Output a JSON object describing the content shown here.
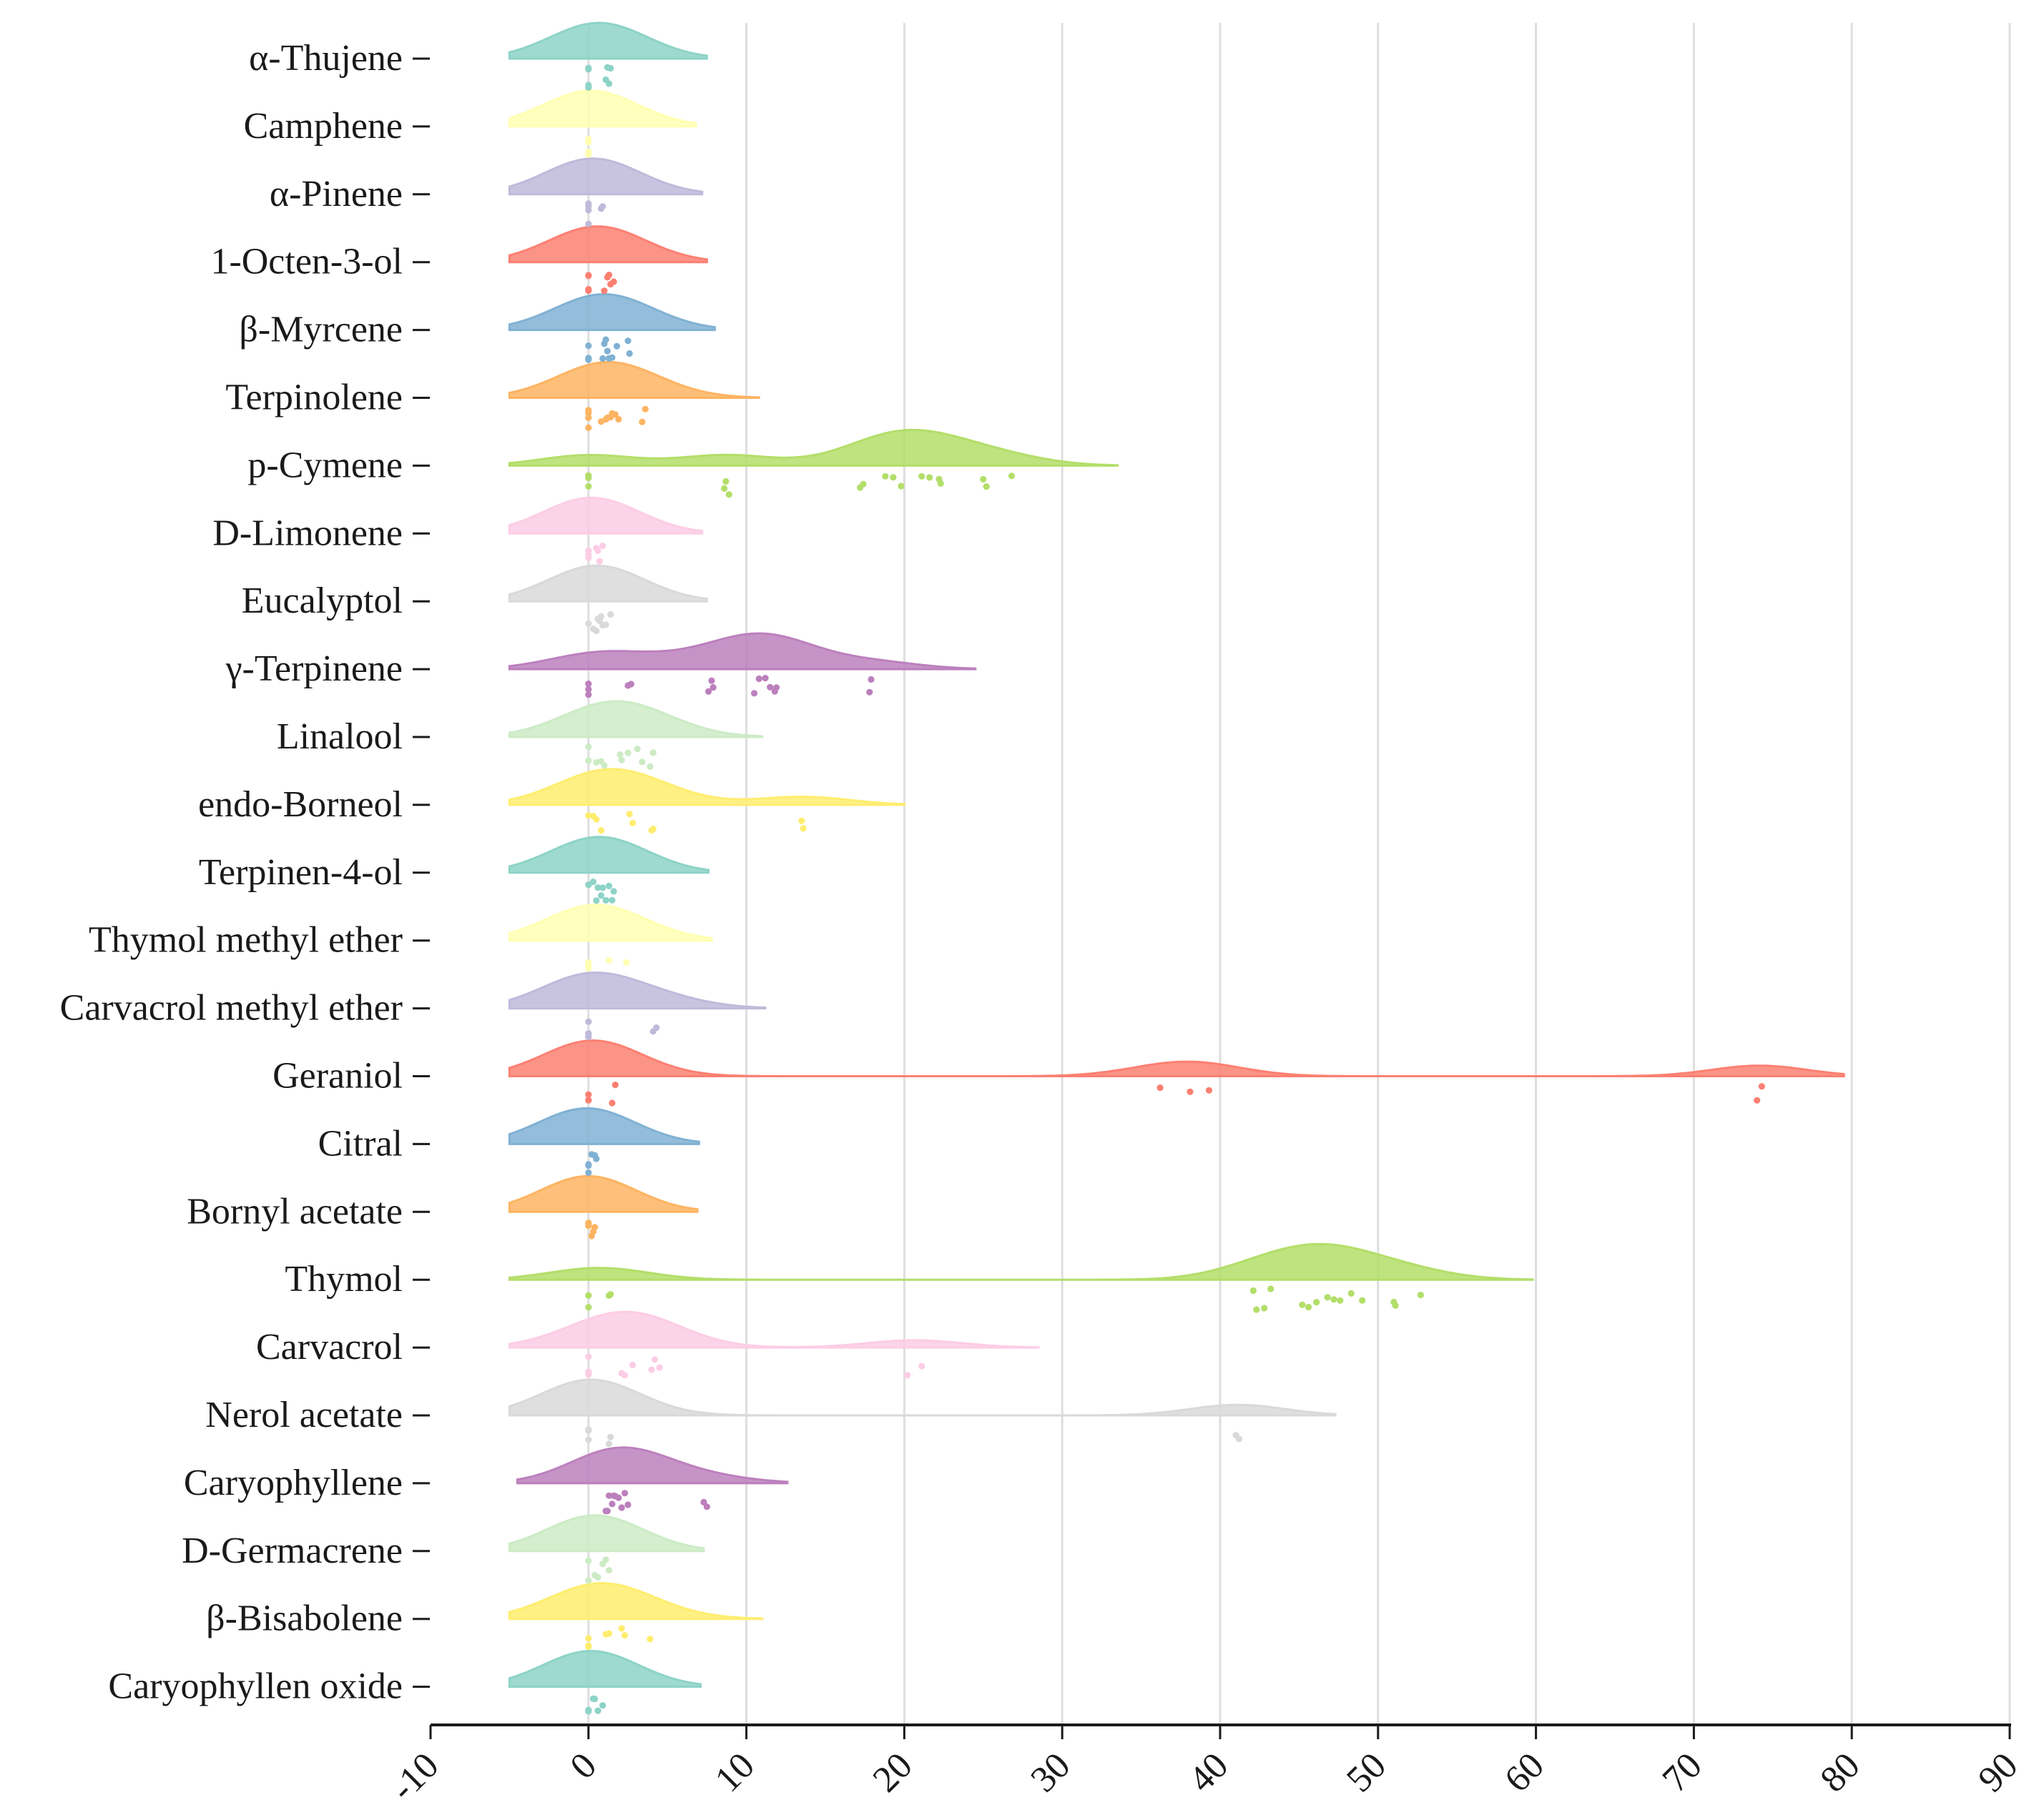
{
  "chart_data": {
    "type": "raincloud",
    "title": "",
    "xlabel": "",
    "ylabel": "",
    "xlim": [
      -10,
      90
    ],
    "xticks": [
      "-10",
      "0",
      "10",
      "20",
      "30",
      "40",
      "50",
      "60",
      "70",
      "80",
      "90"
    ],
    "grid": "vertical",
    "legend": "none",
    "categories": [
      {
        "name": "α-Thujene",
        "color": "#8dd3c7",
        "kde_min": -5,
        "kde_max": 7.5,
        "kde_peak": 0.8,
        "points": [
          0,
          0,
          0,
          0,
          1.2,
          1.4,
          1.3,
          1.1
        ]
      },
      {
        "name": "Camphene",
        "color": "#ffffb3",
        "kde_min": -5,
        "kde_max": 6.8,
        "kde_peak": 0.6,
        "points": [
          0,
          0,
          0,
          0,
          0,
          0
        ]
      },
      {
        "name": "α-Pinene",
        "color": "#bebada",
        "kde_min": -5,
        "kde_max": 7.2,
        "kde_peak": 0.3,
        "points": [
          0,
          0,
          0,
          0,
          0.8,
          0.9
        ]
      },
      {
        "name": "1-Octen-3-ol",
        "color": "#fb8072",
        "kde_min": -5,
        "kde_max": 7.5,
        "kde_peak": 0.2,
        "points": [
          0,
          0,
          0,
          0,
          0,
          1,
          1.2,
          1.4,
          1.6,
          1.3
        ]
      },
      {
        "name": "β-Myrcene",
        "color": "#80b1d3",
        "kde_min": -5,
        "kde_max": 8,
        "kde_peak": 0.5,
        "points": [
          0,
          0,
          0,
          0,
          0.9,
          1.1,
          1.3,
          1.5,
          1.8,
          2.5,
          2.6,
          1.2,
          1.0
        ]
      },
      {
        "name": "Terpinolene",
        "color": "#fdb462",
        "kde_min": -5,
        "kde_max": 10.8,
        "kde_peak": 1.5,
        "points": [
          0,
          0,
          0,
          0,
          0.8,
          1.1,
          1.4,
          1.7,
          1.9,
          1.5,
          3.4,
          3.6,
          1.2
        ]
      },
      {
        "name": "p-Cymene",
        "color": "#b3de69",
        "kde_min": -5,
        "kde_max": 33.5,
        "kde_peak": 20,
        "points": [
          0,
          0,
          0,
          8.6,
          8.9,
          8.7,
          17.2,
          17.4,
          18.8,
          19.3,
          19.8,
          21.1,
          21.6,
          22.3,
          22.2,
          25.0,
          25.2,
          26.8
        ]
      },
      {
        "name": "D-Limonene",
        "color": "#fccde5",
        "kde_min": -5,
        "kde_max": 7.2,
        "kde_peak": -0.5,
        "points": [
          0,
          0,
          0,
          0.5,
          0.7,
          0.9,
          0.6
        ]
      },
      {
        "name": "Eucalyptol",
        "color": "#d9d9d9",
        "kde_min": -5,
        "kde_max": 7.5,
        "kde_peak": -0.3,
        "points": [
          0,
          0.3,
          0.5,
          0.7,
          0.9,
          1.1,
          1.4,
          0.8,
          0.6
        ]
      },
      {
        "name": "γ-Terpinene",
        "color": "#bc80bd",
        "kde_min": -5,
        "kde_max": 24.5,
        "kde_peak": 12,
        "points": [
          0,
          0,
          0,
          2.5,
          2.7,
          7.6,
          7.8,
          7.9,
          10.5,
          10.8,
          11.2,
          11.5,
          11.8,
          11.9,
          17.8,
          17.9
        ]
      },
      {
        "name": "Linalool",
        "color": "#ccebc5",
        "kde_min": -5,
        "kde_max": 11,
        "kde_peak": 1,
        "points": [
          0,
          0,
          0.5,
          0.8,
          1.0,
          2.1,
          2.5,
          3.1,
          3.4,
          3.9,
          4.1,
          2.0
        ]
      },
      {
        "name": "endo-Borneol",
        "color": "#ffed6f",
        "kde_min": -5,
        "kde_max": 20,
        "kde_peak": 0.5,
        "points": [
          0,
          0.3,
          0.5,
          0.8,
          2.6,
          2.8,
          4.0,
          4.1,
          13.5,
          13.6
        ]
      },
      {
        "name": "Terpinen-4-ol",
        "color": "#8dd3c7",
        "kde_min": -5,
        "kde_max": 7.6,
        "kde_peak": -0.2,
        "points": [
          0,
          0.3,
          0.5,
          0.8,
          1.1,
          1.3,
          1.5,
          1.6,
          0.9,
          0.6
        ]
      },
      {
        "name": "Thymol methyl ether",
        "color": "#ffffb3",
        "kde_min": -5,
        "kde_max": 7.8,
        "kde_peak": 0,
        "points": [
          0,
          0,
          0,
          1.3,
          2.4
        ]
      },
      {
        "name": "Carvacrol methyl ether",
        "color": "#bebada",
        "kde_min": -5,
        "kde_max": 11.2,
        "kde_peak": -0.3,
        "points": [
          0,
          0,
          0,
          0,
          4.1,
          4.3
        ]
      },
      {
        "name": "Geraniol",
        "color": "#fb8072",
        "kde_min": -5,
        "kde_max": 79.5,
        "kde_peak": -0.5,
        "points": [
          0,
          0,
          0,
          1.5,
          1.7,
          36.2,
          38.1,
          39.3,
          74.0,
          74.3
        ]
      },
      {
        "name": "Citral",
        "color": "#80b1d3",
        "kde_min": -5,
        "kde_max": 7.0,
        "kde_peak": -1,
        "points": [
          0,
          0,
          0,
          0.2,
          0.4,
          0.5
        ]
      },
      {
        "name": "Bornyl acetate",
        "color": "#fdb462",
        "kde_min": -5,
        "kde_max": 6.9,
        "kde_peak": -0.5,
        "points": [
          0,
          0,
          0,
          0.2,
          0.4,
          0.3
        ]
      },
      {
        "name": "Thymol",
        "color": "#b3de69",
        "kde_min": -5,
        "kde_max": 59.8,
        "kde_peak": 46,
        "points": [
          0,
          0,
          1.3,
          1.4,
          42.1,
          42.3,
          42.8,
          43.2,
          45.2,
          45.6,
          46.1,
          46.8,
          47.2,
          47.6,
          48.3,
          49.0,
          51.0,
          51.1,
          52.7
        ]
      },
      {
        "name": "Carvacrol",
        "color": "#fccde5",
        "kde_min": -5,
        "kde_max": 28.5,
        "kde_peak": 2.5,
        "points": [
          0,
          0,
          0,
          2.1,
          2.3,
          2.8,
          4.0,
          4.2,
          4.5,
          20.2,
          21.1
        ]
      },
      {
        "name": "Nerol acetate",
        "color": "#d9d9d9",
        "kde_min": -5,
        "kde_max": 47.3,
        "kde_peak": -0.8,
        "points": [
          0,
          0,
          0,
          1.3,
          1.4,
          41.0,
          41.2
        ]
      },
      {
        "name": "Caryophyllene",
        "color": "#bc80bd",
        "kde_min": -4.5,
        "kde_max": 12.6,
        "kde_peak": 3.5,
        "points": [
          1.1,
          1.3,
          1.5,
          1.7,
          1.9,
          2.1,
          2.3,
          2.5,
          1.2,
          1.6,
          7.3,
          7.5
        ]
      },
      {
        "name": "D-Germacrene",
        "color": "#ccebc5",
        "kde_min": -5,
        "kde_max": 7.3,
        "kde_peak": -0.3,
        "points": [
          0,
          0,
          0.4,
          0.6,
          0.9,
          1.1,
          1.3
        ]
      },
      {
        "name": "β-Bisabolene",
        "color": "#ffed6f",
        "kde_min": -5,
        "kde_max": 11,
        "kde_peak": -0.5,
        "points": [
          0,
          0,
          0,
          1.1,
          1.3,
          2.1,
          2.3,
          3.9
        ]
      },
      {
        "name": "Caryophyllen oxide",
        "color": "#8dd3c7",
        "kde_min": -5,
        "kde_max": 7.1,
        "kde_peak": -0.5,
        "points": [
          0,
          0,
          0.3,
          0.6,
          0.9,
          0.4
        ]
      }
    ]
  }
}
